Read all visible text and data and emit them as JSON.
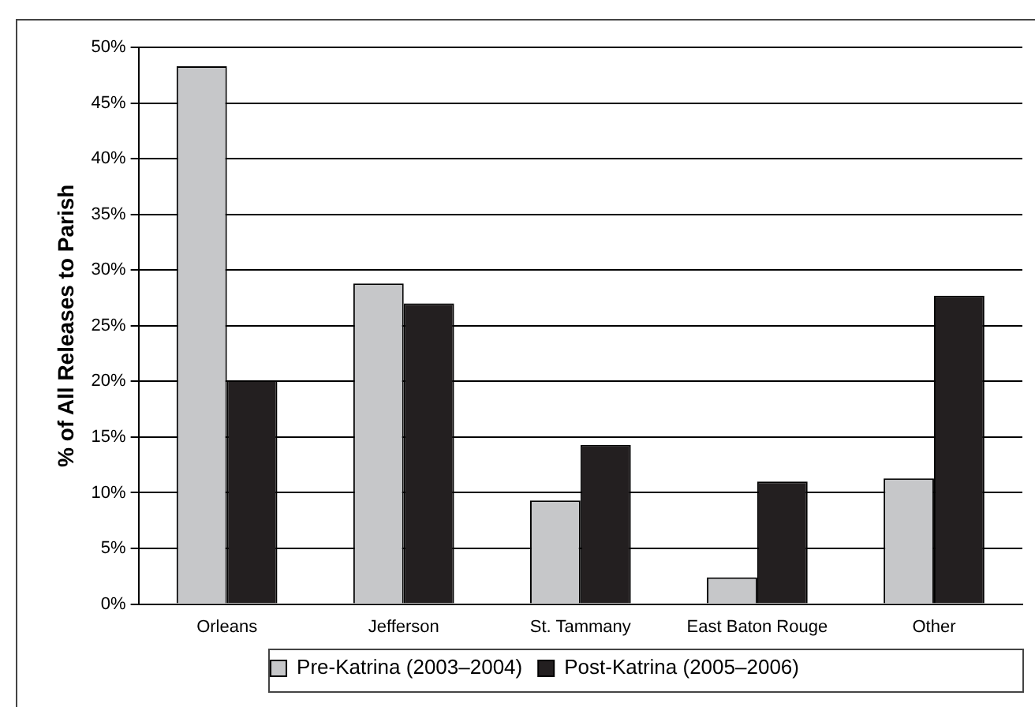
{
  "chart_data": {
    "type": "bar",
    "ylabel": "% of All Releases to Parish",
    "categories": [
      "Orleans",
      "Jefferson",
      "St. Tammany",
      "East Baton Rouge",
      "Other"
    ],
    "series": [
      {
        "name": "Pre-Katrina (2003–2004)",
        "color": "#c6c7c9",
        "values": [
          48.3,
          28.8,
          9.3,
          2.4,
          11.3
        ]
      },
      {
        "name": "Post-Katrina (2005–2006)",
        "color": "#231f20",
        "values": [
          20.1,
          27.0,
          14.3,
          11.0,
          27.7
        ]
      }
    ],
    "ylim": [
      0,
      50
    ],
    "yticks": [
      {
        "value": 0,
        "label": "0%"
      },
      {
        "value": 5,
        "label": "5%"
      },
      {
        "value": 10,
        "label": "10%"
      },
      {
        "value": 15,
        "label": "15%"
      },
      {
        "value": 20,
        "label": "20%"
      },
      {
        "value": 25,
        "label": "25%"
      },
      {
        "value": 30,
        "label": "30%"
      },
      {
        "value": 35,
        "label": "35%"
      },
      {
        "value": 40,
        "label": "40%"
      },
      {
        "value": 45,
        "label": "45%"
      },
      {
        "value": 50,
        "label": "50%"
      }
    ],
    "grid": "y",
    "legend": "bottom"
  }
}
